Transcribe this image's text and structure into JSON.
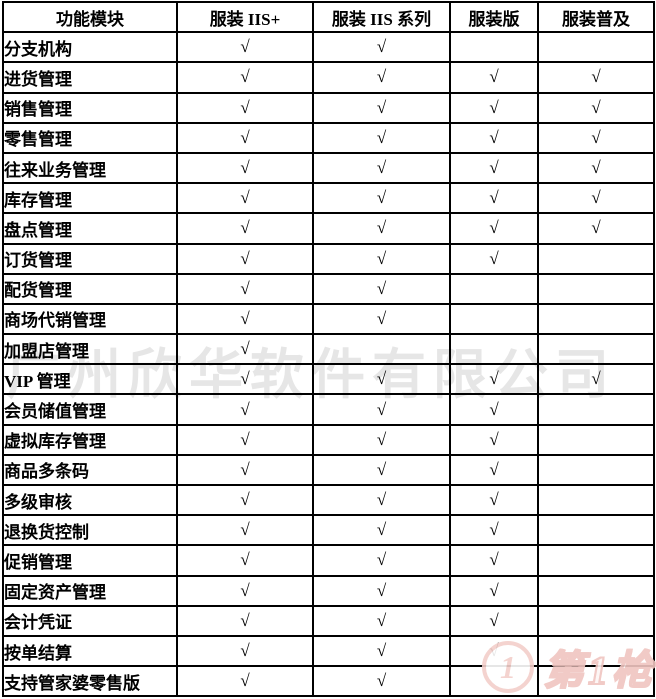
{
  "table": {
    "check_symbol": "√",
    "columns": [
      "功能模块",
      "服装 IIS+",
      "服装 IIS 系列",
      "服装版",
      "服装普及"
    ],
    "rows": [
      {
        "module": "分支机构",
        "checks": [
          true,
          true,
          false,
          false
        ]
      },
      {
        "module": "进货管理",
        "checks": [
          true,
          true,
          true,
          true
        ]
      },
      {
        "module": "销售管理",
        "checks": [
          true,
          true,
          true,
          true
        ]
      },
      {
        "module": "零售管理",
        "checks": [
          true,
          true,
          true,
          true
        ]
      },
      {
        "module": "往来业务管理",
        "checks": [
          true,
          true,
          true,
          true
        ]
      },
      {
        "module": "库存管理",
        "checks": [
          true,
          true,
          true,
          true
        ]
      },
      {
        "module": "盘点管理",
        "checks": [
          true,
          true,
          true,
          true
        ]
      },
      {
        "module": "订货管理",
        "checks": [
          true,
          true,
          true,
          false
        ]
      },
      {
        "module": "配货管理",
        "checks": [
          true,
          true,
          false,
          false
        ]
      },
      {
        "module": "商场代销管理",
        "checks": [
          true,
          true,
          false,
          false
        ]
      },
      {
        "module": "加盟店管理",
        "checks": [
          true,
          false,
          false,
          false
        ]
      },
      {
        "module": "VIP 管理",
        "checks": [
          true,
          true,
          true,
          true
        ]
      },
      {
        "module": "会员储值管理",
        "checks": [
          true,
          true,
          true,
          false
        ]
      },
      {
        "module": "虚拟库存管理",
        "checks": [
          true,
          true,
          true,
          false
        ]
      },
      {
        "module": "商品多条码",
        "checks": [
          true,
          true,
          true,
          false
        ]
      },
      {
        "module": "多级审核",
        "checks": [
          true,
          true,
          true,
          false
        ]
      },
      {
        "module": "退换货控制",
        "checks": [
          true,
          true,
          true,
          false
        ]
      },
      {
        "module": "促销管理",
        "checks": [
          true,
          true,
          true,
          false
        ]
      },
      {
        "module": "固定资产管理",
        "checks": [
          true,
          true,
          true,
          false
        ]
      },
      {
        "module": "会计凭证",
        "checks": [
          true,
          true,
          true,
          false
        ]
      },
      {
        "module": "按单结算",
        "checks": [
          true,
          true,
          true,
          false
        ]
      },
      {
        "module": "支持管家婆零售版",
        "checks": [
          true,
          true,
          false,
          false
        ]
      }
    ]
  },
  "watermarks": {
    "company": "广州欣华软件有限公司",
    "logo_badge": "1",
    "logo_text": "第1枪"
  },
  "colors": {
    "table_border": "#000000",
    "text": "#000000",
    "company_watermark": "#e6e6e6",
    "logo_pink": "#f0c5c0",
    "background": "#ffffff"
  }
}
